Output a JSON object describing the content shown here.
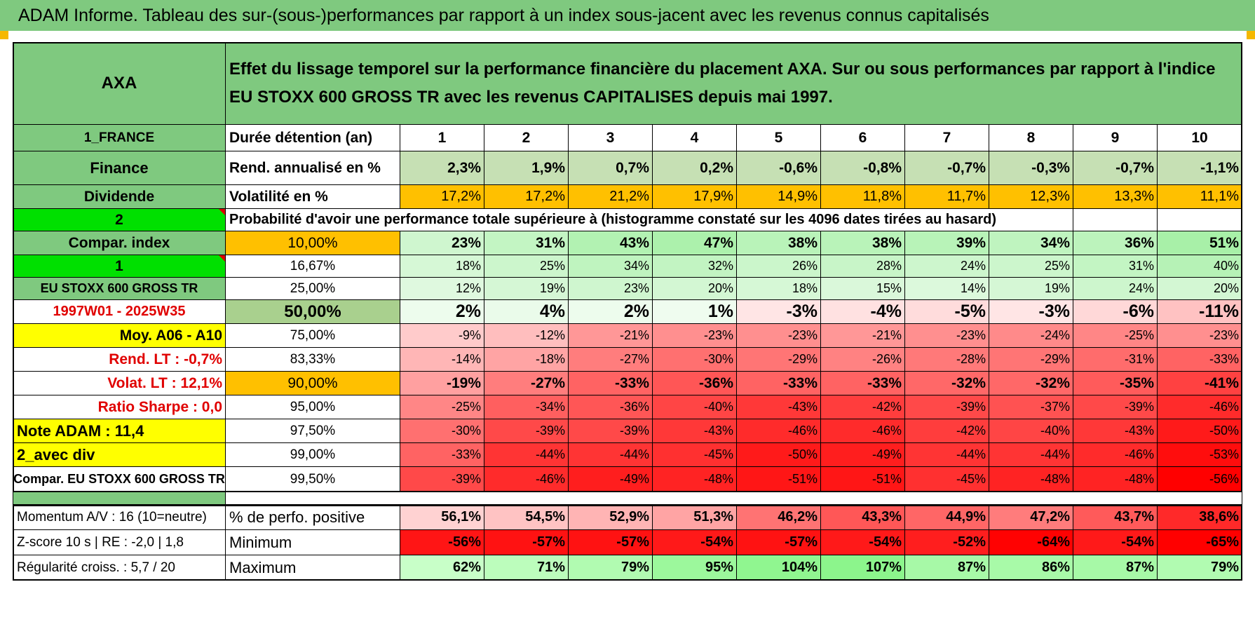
{
  "banner": "ADAM Informe. Tableau des sur-(sous-)performances par rapport à un index sous-jacent avec les revenus connus capitalisés",
  "stock": "AXA",
  "description": "Effet du lissage temporel sur la performance financière du placement AXA. Sur ou sous performances par rapport à l'indice EU STOXX 600 GROSS TR avec les revenus CAPITALISES depuis mai 1997.",
  "side": {
    "country": "1_FRANCE",
    "sector": "Finance",
    "category": "Dividende",
    "code_2": "2",
    "compar_label": "Compar. index",
    "code_1": "1",
    "index_name": "EU STOXX 600 GROSS TR",
    "period": "1997W01 - 2025W35",
    "moy": "Moy. A06 - A10",
    "rend_lt": "Rend. LT :    -0,7%",
    "volat_lt": "Volat. LT :    12,1%",
    "sharpe": "Ratio Sharpe :    0,0",
    "note": "Note ADAM : 11,4",
    "avec_div": "2_avec div",
    "compar_index_full": "Compar. EU STOXX 600 GROSS TR",
    "momentum": "Momentum A/V : 16 (10=neutre)",
    "zscore": "Z-score 10 s | RE : -2,0 | 1,8",
    "regularite": "Régularité croiss. : 5,7 / 20"
  },
  "header_row": {
    "label": "Durée détention (an)",
    "years": [
      "1",
      "2",
      "3",
      "4",
      "5",
      "6",
      "7",
      "8",
      "9",
      "10"
    ]
  },
  "rend_row": {
    "label": "Rend. annualisé en %",
    "values": [
      "2,3%",
      "1,9%",
      "0,7%",
      "0,2%",
      "-0,6%",
      "-0,8%",
      "-0,7%",
      "-0,3%",
      "-0,7%",
      "-1,1%"
    ]
  },
  "vol_row": {
    "label": "Volatilité en %",
    "values": [
      "17,2%",
      "17,2%",
      "21,2%",
      "17,9%",
      "14,9%",
      "11,8%",
      "11,7%",
      "12,3%",
      "13,3%",
      "11,1%"
    ]
  },
  "proba_title": "Probabilité d'avoir une performance totale supérieure à (histogramme constaté sur les 4096 dates tirées au hasard)",
  "prob_rows": [
    {
      "pct": "10,00%",
      "values": [
        "23%",
        "31%",
        "43%",
        "47%",
        "38%",
        "38%",
        "39%",
        "34%",
        "36%",
        "51%"
      ]
    },
    {
      "pct": "16,67%",
      "values": [
        "18%",
        "25%",
        "34%",
        "32%",
        "26%",
        "28%",
        "24%",
        "25%",
        "31%",
        "40%"
      ]
    },
    {
      "pct": "25,00%",
      "values": [
        "12%",
        "19%",
        "23%",
        "20%",
        "18%",
        "15%",
        "14%",
        "19%",
        "24%",
        "20%"
      ]
    },
    {
      "pct": "50,00%",
      "values": [
        "2%",
        "4%",
        "2%",
        "1%",
        "-3%",
        "-4%",
        "-5%",
        "-3%",
        "-6%",
        "-11%"
      ]
    },
    {
      "pct": "75,00%",
      "values": [
        "-9%",
        "-12%",
        "-21%",
        "-23%",
        "-23%",
        "-21%",
        "-23%",
        "-24%",
        "-25%",
        "-23%"
      ]
    },
    {
      "pct": "83,33%",
      "values": [
        "-14%",
        "-18%",
        "-27%",
        "-30%",
        "-29%",
        "-26%",
        "-28%",
        "-29%",
        "-31%",
        "-33%"
      ]
    },
    {
      "pct": "90,00%",
      "values": [
        "-19%",
        "-27%",
        "-33%",
        "-36%",
        "-33%",
        "-33%",
        "-32%",
        "-32%",
        "-35%",
        "-41%"
      ]
    },
    {
      "pct": "95,00%",
      "values": [
        "-25%",
        "-34%",
        "-36%",
        "-40%",
        "-43%",
        "-42%",
        "-39%",
        "-37%",
        "-39%",
        "-46%"
      ]
    },
    {
      "pct": "97,50%",
      "values": [
        "-30%",
        "-39%",
        "-39%",
        "-43%",
        "-46%",
        "-46%",
        "-42%",
        "-40%",
        "-43%",
        "-50%"
      ]
    },
    {
      "pct": "99,00%",
      "values": [
        "-33%",
        "-44%",
        "-44%",
        "-45%",
        "-50%",
        "-49%",
        "-44%",
        "-44%",
        "-46%",
        "-53%"
      ]
    },
    {
      "pct": "99,50%",
      "values": [
        "-39%",
        "-46%",
        "-49%",
        "-48%",
        "-51%",
        "-51%",
        "-45%",
        "-48%",
        "-48%",
        "-56%"
      ]
    }
  ],
  "stats_rows": [
    {
      "label": "% de perfo. positive",
      "values": [
        "56,1%",
        "54,5%",
        "52,9%",
        "51,3%",
        "46,2%",
        "43,3%",
        "44,9%",
        "47,2%",
        "43,7%",
        "38,6%"
      ]
    },
    {
      "label": "Minimum",
      "values": [
        "-56%",
        "-57%",
        "-57%",
        "-54%",
        "-57%",
        "-54%",
        "-52%",
        "-64%",
        "-54%",
        "-65%"
      ]
    },
    {
      "label": "Maximum",
      "values": [
        "62%",
        "71%",
        "79%",
        "95%",
        "104%",
        "107%",
        "87%",
        "86%",
        "87%",
        "79%"
      ]
    }
  ],
  "colors": {
    "header_green": "#7fc97f",
    "bright_green": "#00e000",
    "yellow": "#ffff00",
    "orange": "#ffc000",
    "red_text": "#e00000"
  }
}
